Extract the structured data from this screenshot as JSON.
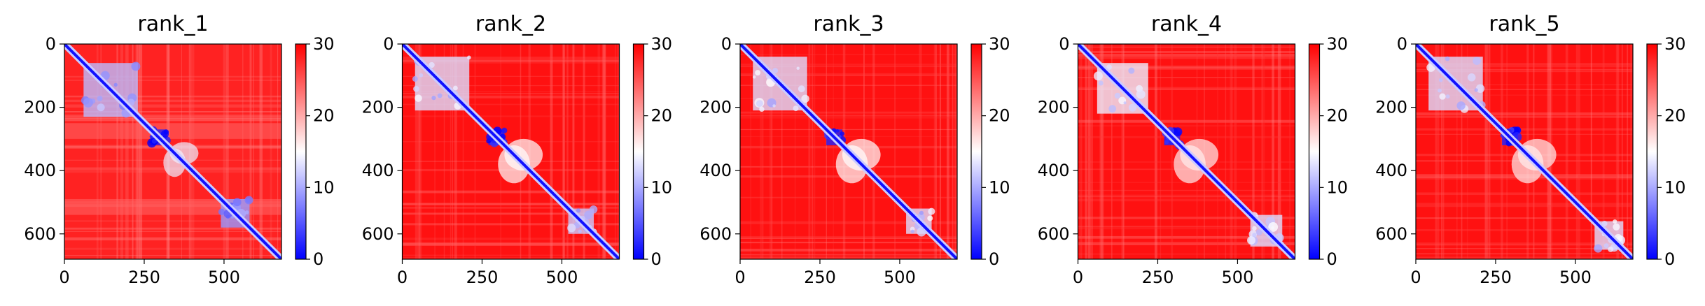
{
  "chart_data": {
    "type": "heatmap",
    "colormap": [
      "#0000ff",
      "#ffffff",
      "#ff0000"
    ],
    "matrix_size": 680,
    "colorbar": {
      "range": [
        0,
        30
      ],
      "ticks": [
        0,
        10,
        20,
        30
      ]
    },
    "panels": [
      {
        "title": "rank_1",
        "xticks": [
          0,
          250,
          500
        ],
        "yticks": [
          0,
          200,
          400,
          600
        ],
        "xlim": [
          0,
          680
        ],
        "ylim": [
          680,
          0
        ],
        "diagonal_value": 1,
        "background_value": 28,
        "low_regions": [
          {
            "x": [
              60,
              230
            ],
            "y": [
              60,
              230
            ],
            "value": 11
          },
          {
            "x": [
              490,
              580
            ],
            "y": [
              490,
              580
            ],
            "value": 9
          },
          {
            "x": [
              270,
              320
            ],
            "y": [
              270,
              320
            ],
            "value": 2
          }
        ],
        "off_diagonal_regions": [
          {
            "x": [
              310,
              380
            ],
            "y": [
              330,
              420
            ],
            "value": 14
          }
        ],
        "band_rows": [
          [
            250,
            300
          ],
          [
            490,
            540
          ]
        ]
      },
      {
        "title": "rank_2",
        "xticks": [
          0,
          250,
          500
        ],
        "yticks": [
          0,
          200,
          400,
          600
        ],
        "xlim": [
          0,
          680
        ],
        "ylim": [
          680,
          0
        ],
        "diagonal_value": 1,
        "background_value": 29,
        "low_regions": [
          {
            "x": [
              40,
              210
            ],
            "y": [
              40,
              210
            ],
            "value": 13
          },
          {
            "x": [
              520,
              600
            ],
            "y": [
              520,
              600
            ],
            "value": 12
          },
          {
            "x": [
              270,
              320
            ],
            "y": [
              270,
              320
            ],
            "value": 2
          }
        ],
        "off_diagonal_regions": [
          {
            "x": [
              300,
              400
            ],
            "y": [
              320,
              440
            ],
            "value": 15
          }
        ],
        "band_rows": []
      },
      {
        "title": "rank_3",
        "xticks": [
          0,
          250,
          500
        ],
        "yticks": [
          0,
          200,
          400,
          600
        ],
        "xlim": [
          0,
          680
        ],
        "ylim": [
          680,
          0
        ],
        "diagonal_value": 1,
        "background_value": 29,
        "low_regions": [
          {
            "x": [
              40,
              210
            ],
            "y": [
              40,
              210
            ],
            "value": 13
          },
          {
            "x": [
              520,
              600
            ],
            "y": [
              520,
              600
            ],
            "value": 13
          },
          {
            "x": [
              270,
              320
            ],
            "y": [
              270,
              320
            ],
            "value": 2
          }
        ],
        "off_diagonal_regions": [
          {
            "x": [
              300,
              400
            ],
            "y": [
              320,
              440
            ],
            "value": 15
          }
        ],
        "band_rows": []
      },
      {
        "title": "rank_4",
        "xticks": [
          0,
          250,
          500
        ],
        "yticks": [
          0,
          200,
          400,
          600
        ],
        "xlim": [
          0,
          680
        ],
        "ylim": [
          680,
          0
        ],
        "diagonal_value": 1,
        "background_value": 29,
        "low_regions": [
          {
            "x": [
              60,
              220
            ],
            "y": [
              60,
              220
            ],
            "value": 14
          },
          {
            "x": [
              540,
              640
            ],
            "y": [
              540,
              640
            ],
            "value": 13
          },
          {
            "x": [
              270,
              320
            ],
            "y": [
              270,
              320
            ],
            "value": 2
          }
        ],
        "off_diagonal_regions": [
          {
            "x": [
              300,
              400
            ],
            "y": [
              320,
              440
            ],
            "value": 16
          }
        ],
        "band_rows": []
      },
      {
        "title": "rank_5",
        "xticks": [
          0,
          250,
          500
        ],
        "yticks": [
          0,
          200,
          400,
          600
        ],
        "xlim": [
          0,
          680
        ],
        "ylim": [
          680,
          0
        ],
        "diagonal_value": 1,
        "background_value": 29,
        "low_regions": [
          {
            "x": [
              40,
              210
            ],
            "y": [
              40,
              210
            ],
            "value": 13
          },
          {
            "x": [
              560,
              650
            ],
            "y": [
              560,
              650
            ],
            "value": 13
          },
          {
            "x": [
              270,
              320
            ],
            "y": [
              270,
              320
            ],
            "value": 2
          }
        ],
        "off_diagonal_regions": [
          {
            "x": [
              300,
              400
            ],
            "y": [
              320,
              440
            ],
            "value": 16
          }
        ],
        "band_rows": []
      }
    ]
  }
}
